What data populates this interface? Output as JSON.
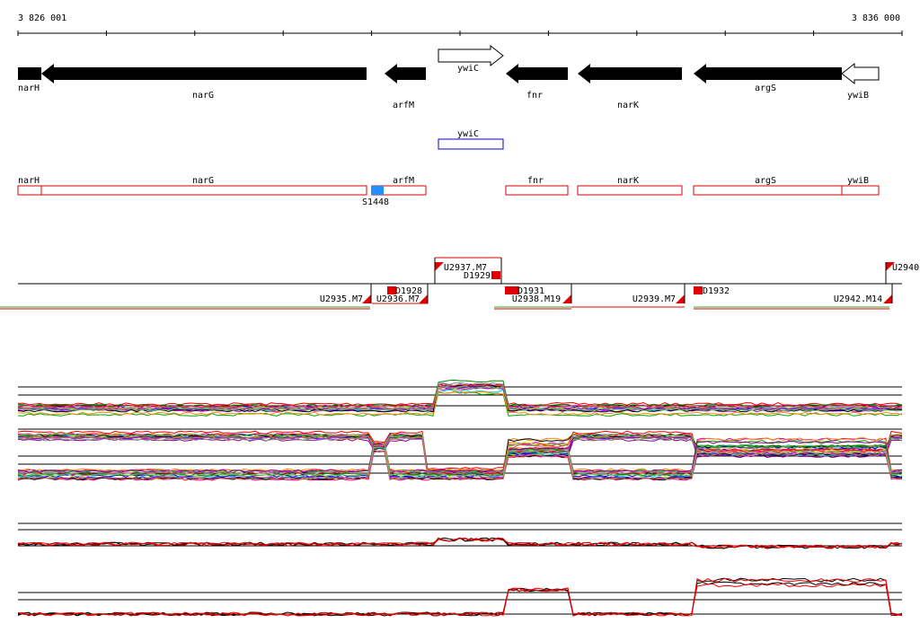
{
  "ruler": {
    "start": "3 826 001",
    "end": "3 836 000"
  },
  "genes": [
    "narH",
    "narG",
    "arfM",
    "ywiC",
    "fnr",
    "narK",
    "argS",
    "ywiB"
  ],
  "ywiC_track": "ywiC",
  "annotated_genes": [
    "narH",
    "narG",
    "arfM",
    "fnr",
    "narK",
    "argS",
    "ywiB"
  ],
  "site": "S1448",
  "segments": [
    "U2935.M7",
    "U2936.M7",
    "D1928",
    "U2937.M7",
    "D1929",
    "D1931",
    "U2938.M19",
    "U2939.M7",
    "D1932",
    "U2942.M14",
    "U2940"
  ]
}
